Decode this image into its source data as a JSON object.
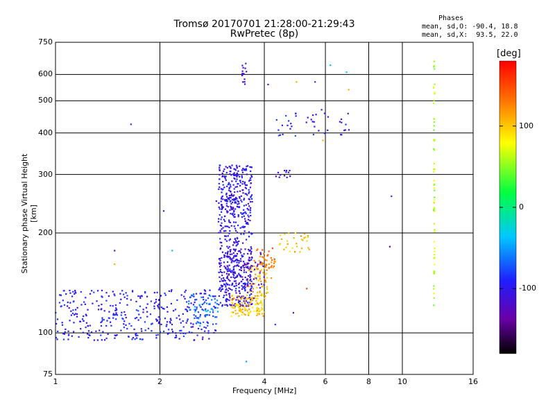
{
  "header": {
    "title_line1": "Tromsø 20170701 21:28:00-21:29:43",
    "title_line2": "RwPretec (8p)"
  },
  "stats": {
    "heading": "Phases",
    "line1": "mean, sd,O: -90.4, 18.8",
    "line2": "mean, sd,X:  93.5, 22.0"
  },
  "colorbar": {
    "label": "[deg]",
    "ticks": [
      "100",
      "0",
      "-100"
    ],
    "tick_values": [
      100,
      0,
      -100
    ],
    "range": [
      -180,
      180
    ]
  },
  "chart_data": {
    "type": "scatter",
    "title": "Tromsø 20170701 21:28:00-21:29:43",
    "subtitle": "RwPretec (8p)",
    "xlabel": "Frequency [MHz]",
    "ylabel": "Stationary phase Virtual Height [km]",
    "xscale": "log",
    "yscale": "log",
    "xlim": [
      1,
      16
    ],
    "ylim": [
      75,
      750
    ],
    "xticks": [
      1,
      2,
      4,
      6,
      8,
      10,
      16
    ],
    "xtick_labels": [
      "1",
      "2",
      "4",
      "6",
      "8",
      "10",
      "16"
    ],
    "yticks": [
      75,
      100,
      200,
      300,
      400,
      500,
      600,
      750
    ],
    "ytick_labels": [
      "75",
      "100",
      "200",
      "300",
      "400",
      "500",
      "600",
      "750"
    ],
    "grid": true,
    "colormap": "rainbow (black-purple-blue-cyan-green-yellow-red), phase in degrees",
    "clusters": [
      {
        "name": "",
        "x": [
          1.0,
          2.9
        ],
        "y": [
          95,
          135
        ],
        "phase": -95,
        "count": 380
      },
      {
        "name": "",
        "x": [
          2.4,
          2.95
        ],
        "y": [
          105,
          130
        ],
        "phase": -60,
        "count": 60
      },
      {
        "name": "",
        "x": [
          2.95,
          3.7
        ],
        "y": [
          120,
          320
        ],
        "phase": -100,
        "count": 600
      },
      {
        "name": "",
        "x": [
          3.1,
          3.7
        ],
        "y": [
          120,
          180
        ],
        "phase": -115,
        "count": 60
      },
      {
        "name": "",
        "x": [
          3.2,
          4.0
        ],
        "y": [
          112,
          130
        ],
        "phase": 100,
        "count": 120
      },
      {
        "name": "",
        "x": [
          3.6,
          4.1
        ],
        "y": [
          125,
          165
        ],
        "phase": 110,
        "count": 60
      },
      {
        "name": "",
        "x": [
          3.8,
          4.3
        ],
        "y": [
          145,
          180
        ],
        "phase": 130,
        "count": 40
      },
      {
        "name": "",
        "x": [
          4.4,
          5.4
        ],
        "y": [
          175,
          200
        ],
        "phase": 105,
        "count": 30
      },
      {
        "name": "",
        "x": [
          3.5,
          4.0
        ],
        "y": [
          125,
          175
        ],
        "phase": -120,
        "count": 30
      },
      {
        "name": "",
        "x": [
          2.9,
          3.3
        ],
        "y": [
          230,
          260
        ],
        "phase": -110,
        "count": 25
      },
      {
        "name": "",
        "x": [
          4.3,
          4.8
        ],
        "y": [
          290,
          310
        ],
        "phase": -105,
        "count": 12
      },
      {
        "name": "",
        "x": [
          4.3,
          5.6
        ],
        "y": [
          390,
          460
        ],
        "phase": -90,
        "count": 20
      },
      {
        "name": "",
        "x": [
          5.5,
          7.1
        ],
        "y": [
          395,
          460
        ],
        "phase": -100,
        "count": 20
      },
      {
        "name": "",
        "x": [
          3.45,
          3.55
        ],
        "y": [
          560,
          650
        ],
        "phase": -115,
        "count": 14
      },
      {
        "name": "",
        "x": [
          12.3,
          12.4
        ],
        "y": [
          110,
          660
        ],
        "phase": 60,
        "count": 60
      }
    ],
    "isolated_points": [
      {
        "x": 1.48,
        "y": 161,
        "phase": 110
      },
      {
        "x": 1.65,
        "y": 425,
        "phase": -80
      },
      {
        "x": 1.48,
        "y": 177,
        "phase": -110
      },
      {
        "x": 2.05,
        "y": 233,
        "phase": -100
      },
      {
        "x": 2.17,
        "y": 177,
        "phase": -40
      },
      {
        "x": 3.55,
        "y": 82,
        "phase": -50
      },
      {
        "x": 4.1,
        "y": 560,
        "phase": -120
      },
      {
        "x": 4.95,
        "y": 570,
        "phase": 110
      },
      {
        "x": 5.6,
        "y": 570,
        "phase": -80
      },
      {
        "x": 6.2,
        "y": 640,
        "phase": -40
      },
      {
        "x": 6.9,
        "y": 610,
        "phase": -30
      },
      {
        "x": 7.0,
        "y": 540,
        "phase": 110
      },
      {
        "x": 9.3,
        "y": 258,
        "phase": -80
      },
      {
        "x": 9.2,
        "y": 182,
        "phase": -140
      },
      {
        "x": 4.85,
        "y": 115,
        "phase": -120
      },
      {
        "x": 4.3,
        "y": 106,
        "phase": -80
      },
      {
        "x": 5.3,
        "y": 136,
        "phase": 150
      },
      {
        "x": 5.85,
        "y": 470,
        "phase": -100
      },
      {
        "x": 5.9,
        "y": 380,
        "phase": 110
      }
    ]
  }
}
